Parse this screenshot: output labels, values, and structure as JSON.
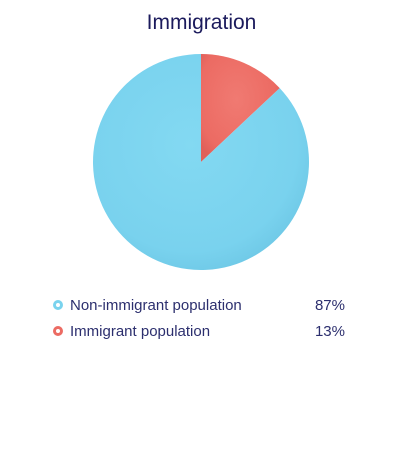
{
  "chart_data": {
    "type": "pie",
    "title": "Immigration",
    "categories": [
      "Non-immigrant population",
      "Immigrant population"
    ],
    "values": [
      87,
      13
    ],
    "value_labels": [
      "87%",
      "13%"
    ],
    "colors": [
      "#7ad3ee",
      "#ec6b63"
    ],
    "legend_position": "bottom"
  }
}
